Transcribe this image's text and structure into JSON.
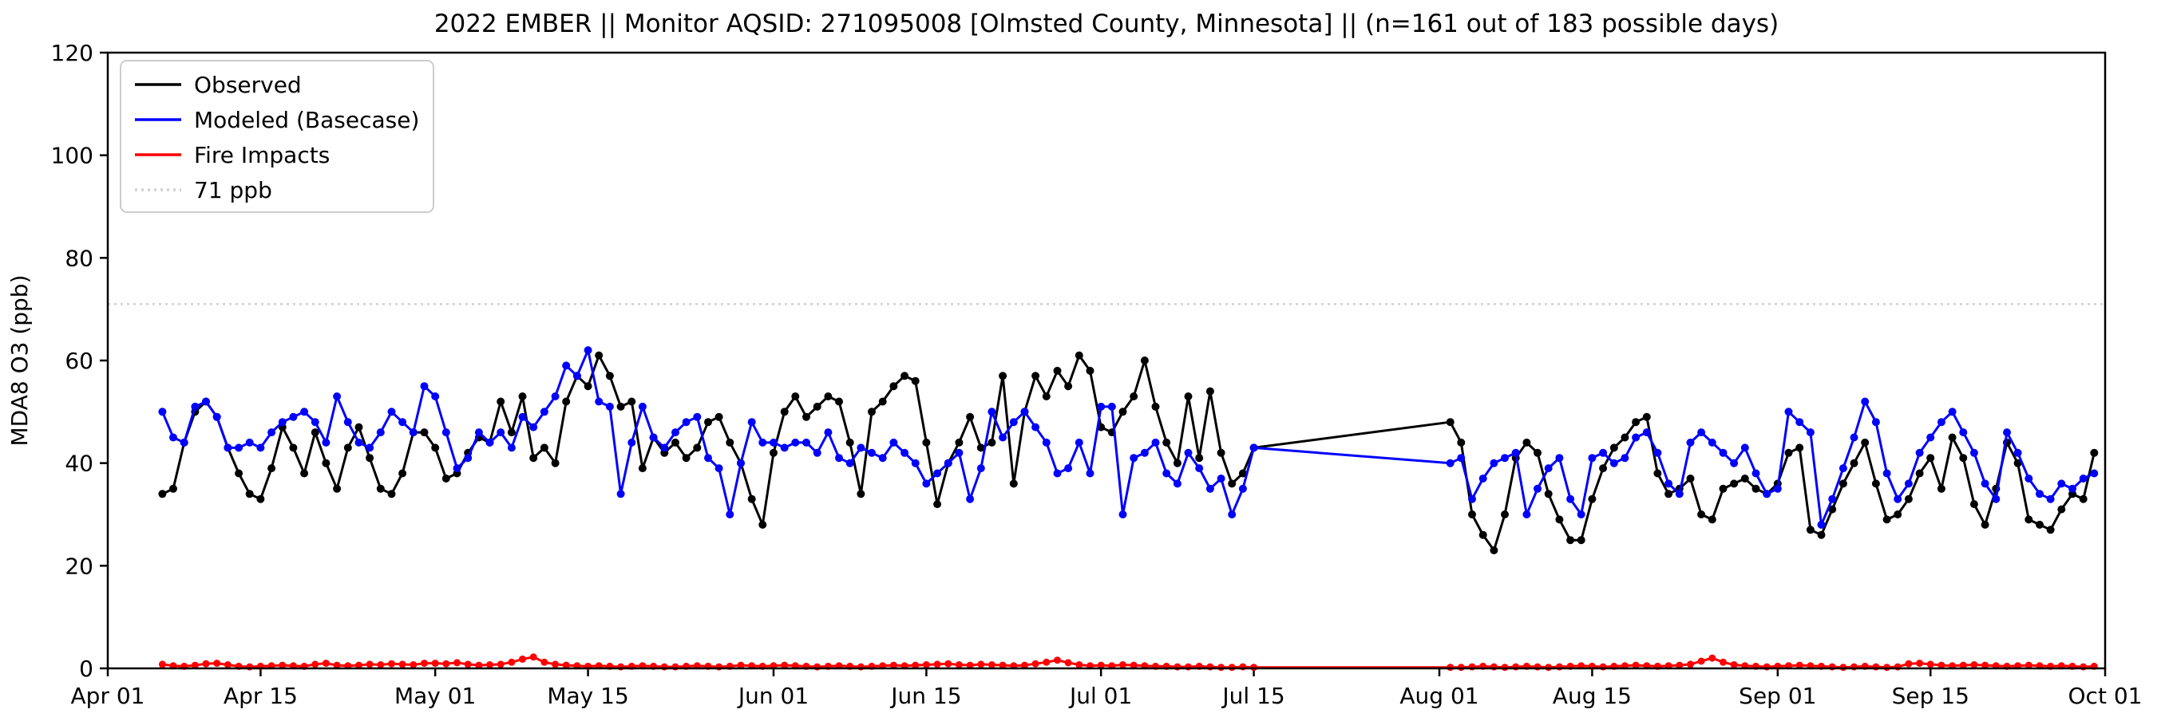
{
  "chart_data": {
    "type": "line",
    "title": "2022 EMBER || Monitor AQSID: 271095008 [Olmsted County, Minnesota] || (n=161 out of 183 possible days)",
    "xlabel": "",
    "ylabel": "MDA8 O3 (ppb)",
    "ylim": [
      0,
      120
    ],
    "yticks": [
      0,
      20,
      40,
      60,
      80,
      100,
      120
    ],
    "xlim": [
      "2022-04-01",
      "2022-10-01"
    ],
    "xticks": [
      {
        "date": "2022-04-01",
        "label": "Apr 01"
      },
      {
        "date": "2022-04-15",
        "label": "Apr 15"
      },
      {
        "date": "2022-05-01",
        "label": "May 01"
      },
      {
        "date": "2022-05-15",
        "label": "May 15"
      },
      {
        "date": "2022-06-01",
        "label": "Jun 01"
      },
      {
        "date": "2022-06-15",
        "label": "Jun 15"
      },
      {
        "date": "2022-07-01",
        "label": "Jul 01"
      },
      {
        "date": "2022-07-15",
        "label": "Jul 15"
      },
      {
        "date": "2022-08-01",
        "label": "Aug 01"
      },
      {
        "date": "2022-08-15",
        "label": "Aug 15"
      },
      {
        "date": "2022-09-01",
        "label": "Sep 01"
      },
      {
        "date": "2022-09-15",
        "label": "Sep 15"
      },
      {
        "date": "2022-10-01",
        "label": "Oct 01"
      }
    ],
    "reference_line": {
      "value": 71,
      "label": "71 ppb",
      "style": "dotted",
      "color": "#d0d0d0"
    },
    "legend_position": "upper left",
    "grid": false,
    "series": [
      {
        "name": "Observed",
        "color": "#000000",
        "marker": "circle",
        "segments": [
          {
            "start": "2022-04-06",
            "values": [
              34,
              35,
              44,
              50,
              52,
              49,
              43,
              38,
              34,
              33,
              39,
              47,
              43,
              38,
              46,
              40,
              35,
              43,
              47,
              41,
              35,
              34,
              38,
              46,
              46,
              43,
              37,
              38,
              42,
              45,
              44,
              52,
              46,
              53,
              41,
              43,
              40,
              52,
              57,
              55,
              61,
              57,
              51,
              52,
              39,
              45,
              42,
              44,
              41,
              43,
              48,
              49,
              44,
              40,
              33,
              28,
              42,
              50,
              53,
              49,
              51,
              53,
              52,
              44,
              34,
              50,
              52,
              55,
              57,
              56,
              44,
              32,
              40,
              44,
              49,
              43,
              44,
              57,
              36,
              50,
              57,
              53,
              58,
              55,
              61,
              58,
              47,
              46,
              50,
              53,
              60,
              51,
              44,
              40,
              53,
              41,
              54,
              42,
              36,
              38,
              43
            ]
          },
          {
            "start": "2022-08-02",
            "values": [
              48,
              44,
              30,
              26,
              23,
              30,
              41,
              44,
              42,
              34,
              29,
              25,
              25,
              33,
              39,
              43,
              45,
              48,
              49,
              38,
              34,
              35,
              37,
              30,
              29,
              35,
              36,
              37,
              35,
              34,
              36,
              42,
              43,
              27,
              26,
              31,
              36,
              40,
              44,
              36,
              29,
              30,
              33,
              38,
              41,
              35,
              45,
              41,
              32,
              28,
              35,
              44,
              40,
              29,
              28,
              27,
              31,
              34,
              33,
              42
            ]
          }
        ]
      },
      {
        "name": "Modeled (Basecase)",
        "color": "#0000ff",
        "marker": "circle",
        "segments": [
          {
            "start": "2022-04-06",
            "values": [
              50,
              45,
              44,
              51,
              52,
              49,
              43,
              43,
              44,
              43,
              46,
              48,
              49,
              50,
              48,
              44,
              53,
              48,
              44,
              43,
              46,
              50,
              48,
              46,
              55,
              53,
              46,
              39,
              41,
              46,
              44,
              46,
              43,
              49,
              47,
              50,
              53,
              59,
              57,
              62,
              52,
              51,
              34,
              44,
              51,
              45,
              43,
              46,
              48,
              49,
              41,
              39,
              30,
              40,
              48,
              44,
              44,
              43,
              44,
              44,
              42,
              46,
              41,
              40,
              43,
              42,
              41,
              44,
              42,
              40,
              36,
              38,
              40,
              42,
              33,
              39,
              50,
              45,
              48,
              50,
              47,
              44,
              38,
              39,
              44,
              38,
              51,
              51,
              30,
              41,
              42,
              44,
              38,
              36,
              42,
              39,
              35,
              37,
              30,
              35,
              43
            ]
          },
          {
            "start": "2022-08-02",
            "values": [
              40,
              41,
              33,
              37,
              40,
              41,
              42,
              30,
              35,
              39,
              41,
              33,
              30,
              41,
              42,
              40,
              41,
              45,
              46,
              42,
              36,
              34,
              44,
              46,
              44,
              42,
              40,
              43,
              38,
              34,
              35,
              50,
              48,
              46,
              28,
              33,
              39,
              45,
              52,
              48,
              38,
              33,
              36,
              42,
              45,
              48,
              50,
              46,
              42,
              36,
              33,
              46,
              42,
              37,
              34,
              33,
              36,
              35,
              37,
              38
            ]
          }
        ]
      },
      {
        "name": "Fire Impacts",
        "color": "#ff0000",
        "marker": "circle",
        "segments": [
          {
            "start": "2022-04-06",
            "values": [
              0.8,
              0.5,
              0.4,
              0.6,
              0.9,
              1.0,
              0.7,
              0.4,
              0.3,
              0.4,
              0.5,
              0.6,
              0.5,
              0.4,
              0.8,
              1.0,
              0.6,
              0.5,
              0.6,
              0.8,
              0.7,
              0.9,
              0.8,
              0.7,
              1.0,
              1.0,
              0.9,
              1.1,
              0.8,
              0.6,
              0.7,
              0.8,
              1.2,
              1.8,
              2.2,
              1.2,
              0.8,
              0.6,
              0.5,
              0.4,
              0.5,
              0.4,
              0.3,
              0.4,
              0.5,
              0.4,
              0.3,
              0.3,
              0.4,
              0.5,
              0.4,
              0.3,
              0.4,
              0.6,
              0.5,
              0.4,
              0.5,
              0.6,
              0.5,
              0.4,
              0.3,
              0.4,
              0.5,
              0.4,
              0.3,
              0.4,
              0.5,
              0.6,
              0.5,
              0.6,
              0.7,
              0.8,
              0.9,
              0.7,
              0.6,
              0.8,
              0.7,
              0.6,
              0.5,
              0.6,
              0.9,
              1.2,
              1.6,
              1.1,
              0.7,
              0.5,
              0.6,
              0.5,
              0.7,
              0.6,
              0.5,
              0.4,
              0.4,
              0.3,
              0.3,
              0.4,
              0.3,
              0.2,
              0.2,
              0.3,
              0.2
            ]
          },
          {
            "start": "2022-08-02",
            "values": [
              0.2,
              0.2,
              0.3,
              0.4,
              0.3,
              0.2,
              0.3,
              0.4,
              0.3,
              0.2,
              0.3,
              0.4,
              0.5,
              0.4,
              0.3,
              0.4,
              0.5,
              0.6,
              0.5,
              0.4,
              0.5,
              0.6,
              0.8,
              1.4,
              2.0,
              1.2,
              0.7,
              0.5,
              0.4,
              0.3,
              0.4,
              0.5,
              0.6,
              0.5,
              0.4,
              0.3,
              0.2,
              0.3,
              0.4,
              0.3,
              0.2,
              0.3,
              0.9,
              1.0,
              0.8,
              0.6,
              0.5,
              0.6,
              0.7,
              0.6,
              0.5,
              0.4,
              0.5,
              0.6,
              0.5,
              0.4,
              0.5,
              0.4,
              0.3,
              0.4
            ]
          }
        ]
      }
    ]
  }
}
